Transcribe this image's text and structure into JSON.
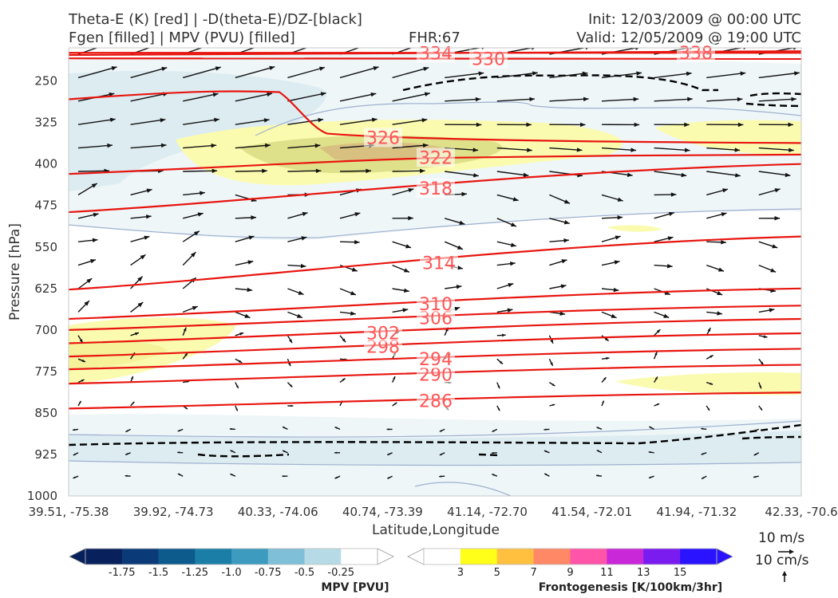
{
  "header": {
    "title_left_1": "Theta-E (K) [red] | -D(theta-E)/DZ-[black]",
    "title_left_2": "Fgen [filled] | MPV (PVU) [filled]",
    "fhr": "FHR:67",
    "init": "Init: 12/03/2009 @ 00:00 UTC",
    "valid": "Valid: 12/05/2009 @ 19:00 UTC"
  },
  "chart_data": {
    "type": "cross-section",
    "xlabel": "Latitude,Longitude",
    "ylabel": "Pressure [hPa]",
    "x_ticks": [
      "39.51, -75.38",
      "39.92, -74.73",
      "40.33, -74.06",
      "40.74, -73.39",
      "41.14, -72.70",
      "41.54, -72.01",
      "41.94, -71.32",
      "42.33, -70.6"
    ],
    "y_ticks": [
      250,
      325,
      400,
      475,
      550,
      625,
      700,
      775,
      850,
      925,
      1000
    ],
    "ylim": [
      1000,
      190
    ],
    "theta_e_contours": [
      {
        "value": 286,
        "label": "286",
        "p_left": 842,
        "p_right": 813
      },
      {
        "value": 290,
        "label": "290",
        "p_left": 797,
        "p_right": 763
      },
      {
        "value": 294,
        "label": "294",
        "p_left": 771,
        "p_right": 734
      },
      {
        "value": 298,
        "label": "298",
        "p_left": 748,
        "p_right": 706
      },
      {
        "value": 302,
        "label": "302",
        "p_left": 724,
        "p_right": 680
      },
      {
        "value": 306,
        "label": "306",
        "p_left": 700,
        "p_right": 656
      },
      {
        "value": 310,
        "label": "310",
        "p_left": 680,
        "p_right": 625
      },
      {
        "value": 314,
        "label": "314",
        "p_left": 627,
        "p_right": 531
      },
      {
        "value": 318,
        "label": "318",
        "p_left": 487,
        "p_right": 400
      },
      {
        "value": 322,
        "label": "322",
        "p_left": 418,
        "p_right": 383
      },
      {
        "value": 326,
        "label": "326",
        "p_left": 282,
        "p_right": 362
      },
      {
        "value": 330,
        "label": "330",
        "p_left": 209,
        "p_right": 210
      },
      {
        "value": 334,
        "label": "334",
        "p_left": 203,
        "p_right": 196
      },
      {
        "value": 338,
        "label": "338",
        "p_left": 199,
        "p_right": 199
      }
    ],
    "mpv_colorbar": {
      "title": "MPV [PVU]",
      "ticks": [
        "-1.75",
        "-1.5",
        "-1.25",
        "-1.0",
        "-0.75",
        "-0.5",
        "-0.25"
      ],
      "colors": [
        "#08205c",
        "#0b3a78",
        "#0d5a8c",
        "#1a7ea6",
        "#3d9bbf",
        "#7fbfd8",
        "#b6dbe6",
        "#ffffff"
      ]
    },
    "fgen_colorbar": {
      "title": "Frontogenesis [K/100km/3hr]",
      "ticks": [
        "3",
        "5",
        "7",
        "9",
        "11",
        "13",
        "15"
      ],
      "colors": [
        "#ffffff",
        "#ffff1a",
        "#ffc040",
        "#ff8866",
        "#ff55a8",
        "#c828d8",
        "#7a1cf0",
        "#2a14ff"
      ]
    },
    "vector_key": {
      "label_1": "10 m/s",
      "label_2": "10 cm/s"
    },
    "grid": false,
    "legend": "colorbars-bottom"
  },
  "colors": {
    "theta_e": "#e8150f",
    "label": "#ff5555",
    "dtheta": "#000000"
  }
}
